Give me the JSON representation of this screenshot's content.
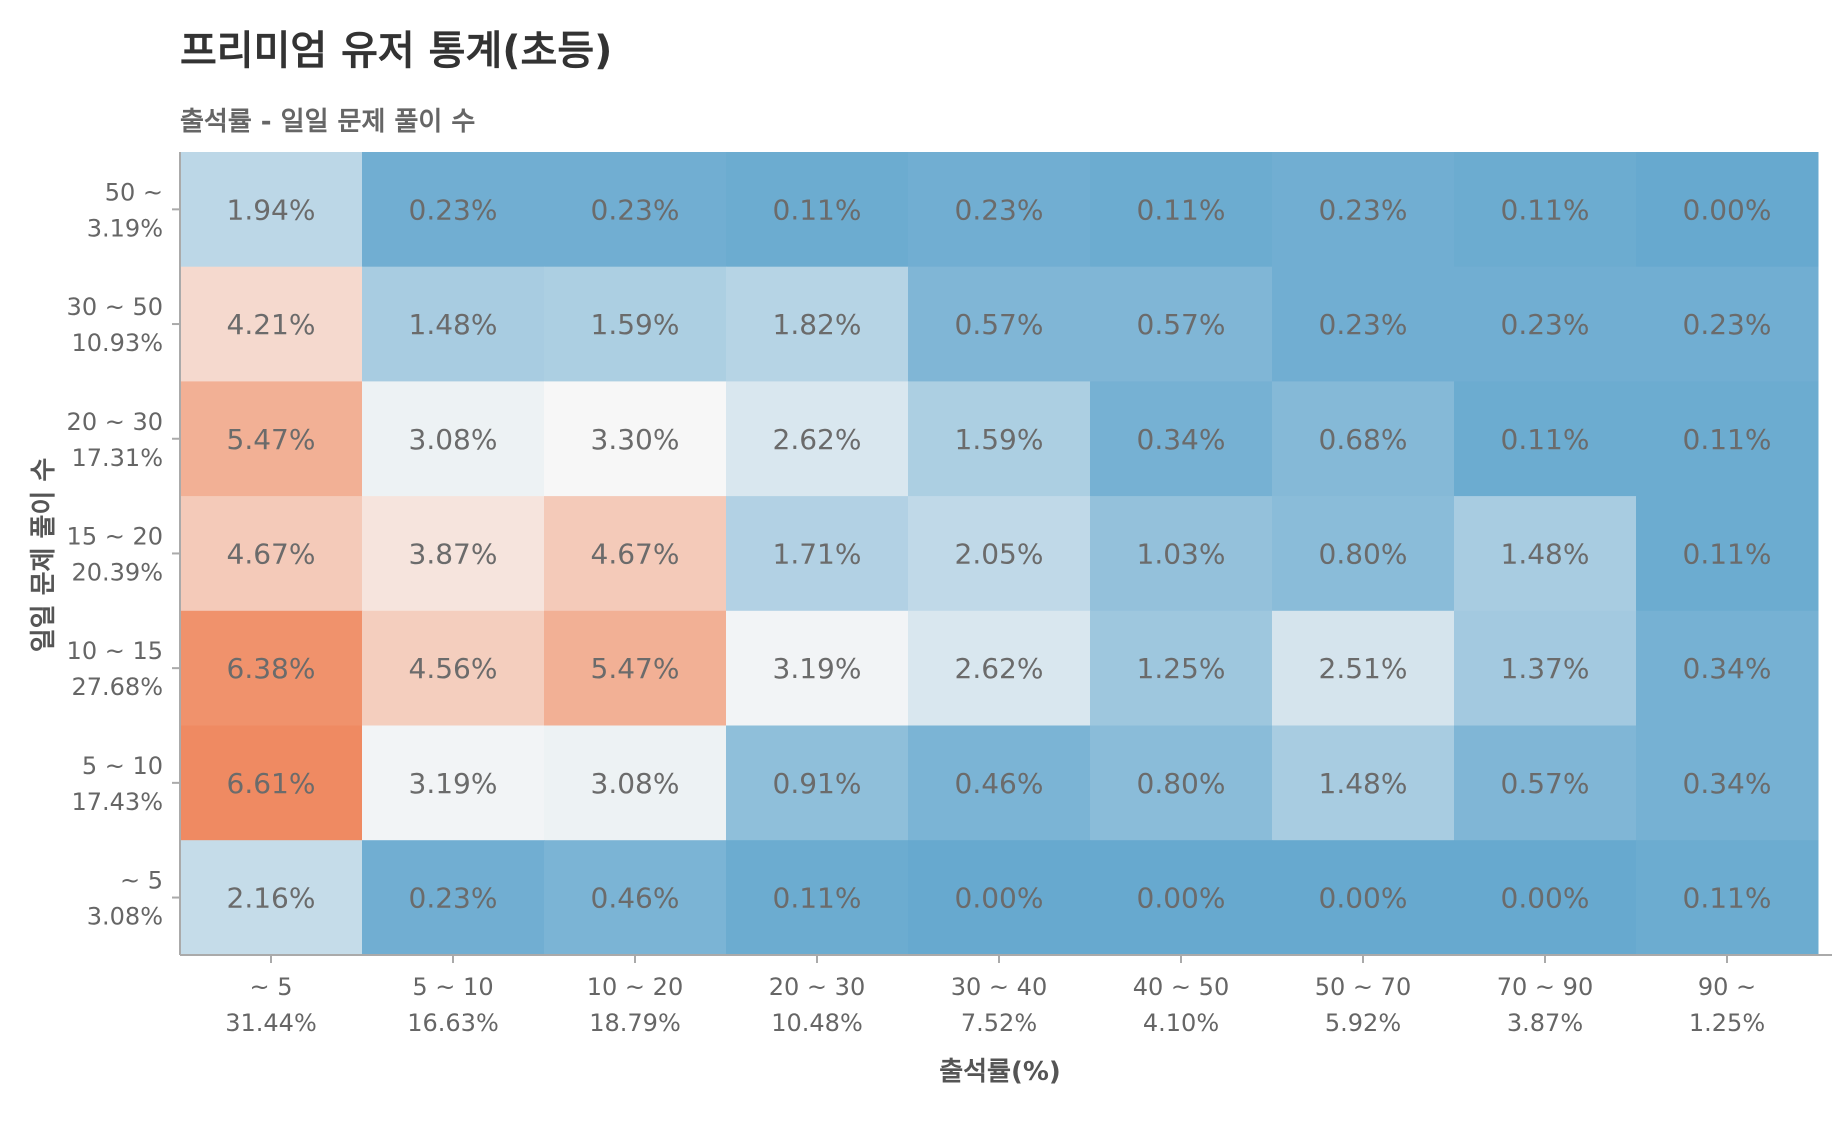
{
  "chart_data": {
    "type": "heatmap",
    "title": "프리미엄 유저 통계(초등)",
    "subtitle": "출석률 - 일일 문제 풀이 수",
    "xlabel": "출석률(%)",
    "ylabel": "일일 문제 풀이 수",
    "x_categories": [
      {
        "label": "~ 5",
        "share": "31.44%"
      },
      {
        "label": "5 ~ 10",
        "share": "16.63%"
      },
      {
        "label": "10 ~  20",
        "share": "18.79%"
      },
      {
        "label": "20 ~ 30",
        "share": "10.48%"
      },
      {
        "label": "30 ~ 40",
        "share": "7.52%"
      },
      {
        "label": "40 ~ 50",
        "share": "4.10%"
      },
      {
        "label": "50 ~ 70",
        "share": "5.92%"
      },
      {
        "label": "70 ~ 90",
        "share": "3.87%"
      },
      {
        "label": "90 ~",
        "share": "1.25%"
      }
    ],
    "y_categories": [
      {
        "label": "50 ~",
        "share": "3.19%"
      },
      {
        "label": "30 ~ 50",
        "share": "10.93%"
      },
      {
        "label": "20 ~ 30",
        "share": "17.31%"
      },
      {
        "label": "15 ~ 20",
        "share": "20.39%"
      },
      {
        "label": "10 ~ 15",
        "share": "27.68%"
      },
      {
        "label": "5 ~ 10",
        "share": "17.43%"
      },
      {
        "label": "~ 5",
        "share": "3.08%"
      }
    ],
    "values": [
      [
        1.94,
        0.23,
        0.23,
        0.11,
        0.23,
        0.11,
        0.23,
        0.11,
        0.0
      ],
      [
        4.21,
        1.48,
        1.59,
        1.82,
        0.57,
        0.57,
        0.23,
        0.23,
        0.23
      ],
      [
        5.47,
        3.08,
        3.3,
        2.62,
        1.59,
        0.34,
        0.68,
        0.11,
        0.11
      ],
      [
        4.67,
        3.87,
        4.67,
        1.71,
        2.05,
        1.03,
        0.8,
        1.48,
        0.11
      ],
      [
        6.38,
        4.56,
        5.47,
        3.19,
        2.62,
        1.25,
        2.51,
        1.37,
        0.34
      ],
      [
        6.61,
        3.19,
        3.08,
        0.91,
        0.46,
        0.8,
        1.48,
        0.57,
        0.34
      ],
      [
        2.16,
        0.23,
        0.46,
        0.11,
        0.0,
        0.0,
        0.0,
        0.0,
        0.11
      ]
    ],
    "value_suffix": "%",
    "color_scale": {
      "low": "#67a9cf",
      "mid": "#f7f7f7",
      "high": "#ef8a62",
      "domain": [
        0,
        3.3,
        6.61
      ]
    },
    "grid": false,
    "legend": "none"
  }
}
